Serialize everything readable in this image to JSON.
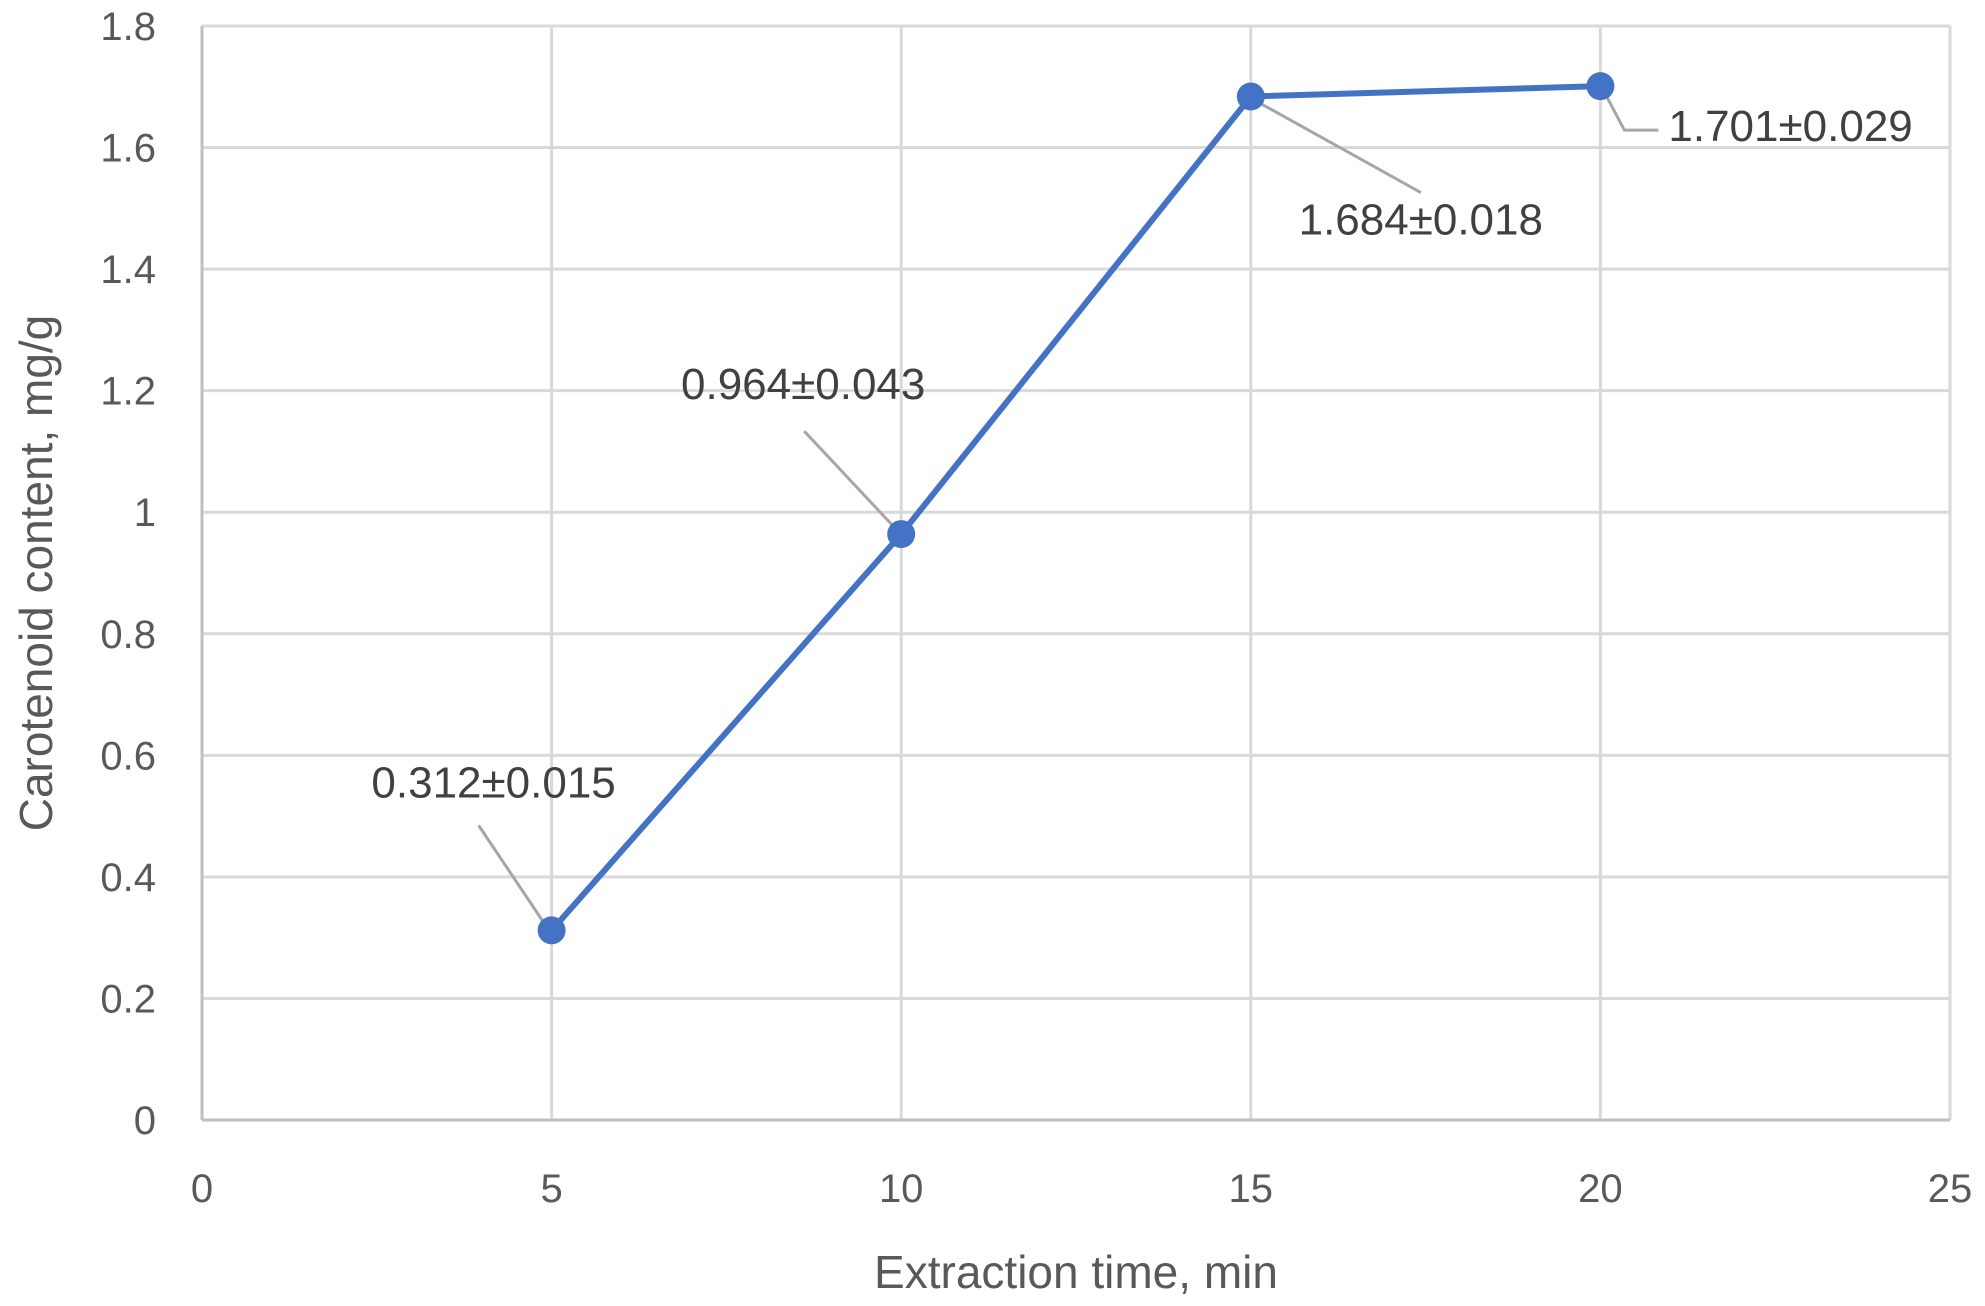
{
  "chart_data": {
    "type": "scatter",
    "title": "",
    "xlabel": "Extraction time, min",
    "ylabel": "Carotenoid content, mg/g",
    "xlim": [
      0,
      25
    ],
    "ylim": [
      0,
      1.8
    ],
    "x_ticks": [
      "0",
      "5",
      "10",
      "15",
      "20",
      "25"
    ],
    "y_ticks": [
      "0",
      "0.2",
      "0.4",
      "0.6",
      "0.8",
      "1",
      "1.2",
      "1.4",
      "1.6",
      "1.8"
    ],
    "grid": true,
    "lines_connect_points": true,
    "series": [
      {
        "color": "#4472c4",
        "x": [
          5,
          10,
          15,
          20
        ],
        "y": [
          0.312,
          0.964,
          1.684,
          1.701
        ],
        "labels": [
          "0.312±0.015",
          "0.964±0.043",
          "1.684±0.018",
          "1.701±0.029"
        ]
      }
    ]
  }
}
